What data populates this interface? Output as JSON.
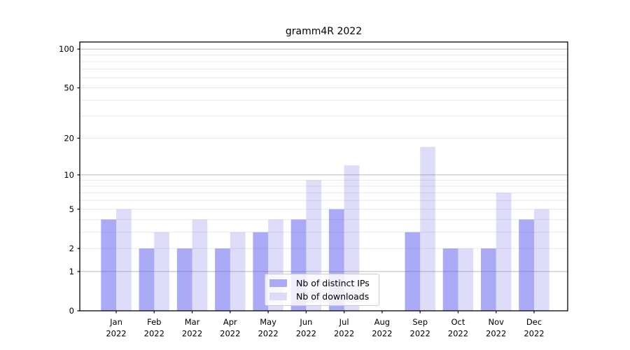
{
  "chart_data": {
    "type": "bar",
    "title": "gramm4R 2022",
    "categories": [
      "Jan",
      "Feb",
      "Mar",
      "Apr",
      "May",
      "Jun",
      "Jul",
      "Aug",
      "Sep",
      "Oct",
      "Nov",
      "Dec"
    ],
    "category_year": "2022",
    "series": [
      {
        "name": "Nb of distinct IPs",
        "values": [
          4,
          2,
          2,
          2,
          3,
          4,
          5,
          0,
          3,
          2,
          2,
          4
        ],
        "color": "#aaaaf6",
        "fill": "rgba(85,85,238,0.5)"
      },
      {
        "name": "Nb of downloads",
        "values": [
          5,
          3,
          4,
          3,
          4,
          9,
          12,
          0,
          17,
          2,
          7,
          5
        ],
        "color": "#dcdcf9",
        "fill": "rgba(100,100,230,0.22)"
      }
    ],
    "y_axis": {
      "scale": "log1p",
      "tick_labels": [
        0,
        1,
        2,
        5,
        10,
        20,
        50,
        100
      ],
      "range": [
        0,
        114
      ]
    },
    "x_axis": {
      "label_lines": 2
    },
    "grid": {
      "major_values": [
        1,
        10,
        100
      ],
      "minor_values": [
        2,
        3,
        4,
        5,
        6,
        7,
        8,
        9,
        20,
        30,
        40,
        50,
        60,
        70,
        80,
        90
      ],
      "major_color": "#c2c2c2",
      "minor_color": "#e8e8e8"
    },
    "legend": {
      "position": "lower center"
    },
    "colors": {
      "spine": "#000000",
      "background": "#ffffff"
    }
  }
}
